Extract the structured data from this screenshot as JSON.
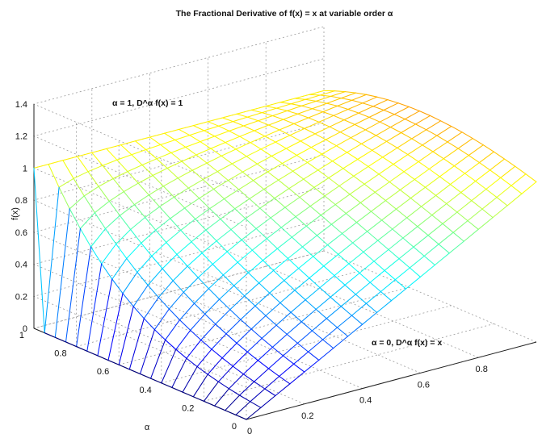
{
  "chart_data": {
    "type": "surface",
    "title": "The Fractional Derivative of f(x) = x at variable order α",
    "zlabel": "f(x)",
    "xlabel": "α",
    "ylabel": "",
    "alpha_range": [
      0,
      1
    ],
    "x_range": [
      0,
      1
    ],
    "z_range": [
      0,
      1.4
    ],
    "alpha_ticks": [
      "0",
      "0.2",
      "0.4",
      "0.6",
      "0.8",
      "1"
    ],
    "x_ticks": [
      "0",
      "0.2",
      "0.4",
      "0.6",
      "0.8"
    ],
    "z_ticks": [
      "0",
      "0.2",
      "0.4",
      "0.6",
      "0.8",
      "1",
      "1.2",
      "1.4"
    ],
    "grid": true,
    "colormap": "jet",
    "mesh_resolution": 20,
    "surface": "D^α f(x) = x^(1-α) / Γ(2-α)",
    "annotations": [
      {
        "text": "α = 1, D^α f(x) = 1"
      },
      {
        "text": "α = 0, D^α f(x) = x"
      }
    ]
  }
}
